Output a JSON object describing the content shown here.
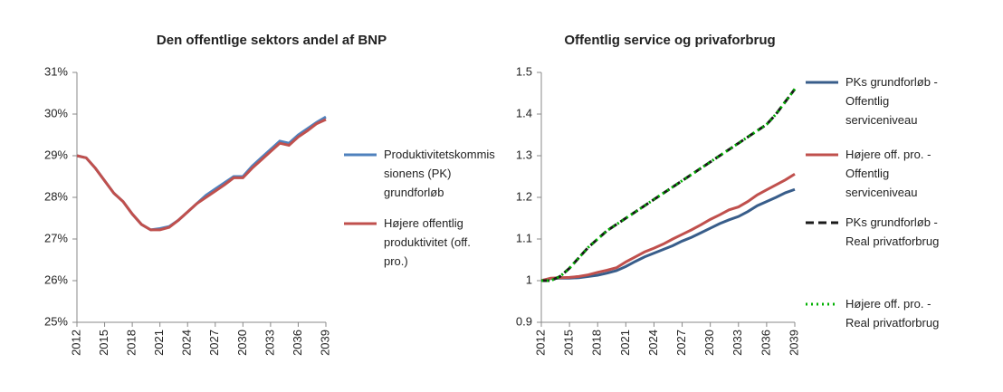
{
  "chart_data": [
    {
      "type": "line",
      "title": "Den offentlige sektors andel af BNP",
      "x": [
        2012,
        2013,
        2014,
        2015,
        2016,
        2017,
        2018,
        2019,
        2020,
        2021,
        2022,
        2023,
        2024,
        2025,
        2026,
        2027,
        2028,
        2029,
        2030,
        2031,
        2032,
        2033,
        2034,
        2035,
        2036,
        2037,
        2038,
        2039
      ],
      "xlim": [
        2012,
        2039
      ],
      "xticks": [
        2012,
        2015,
        2018,
        2021,
        2024,
        2027,
        2030,
        2033,
        2036,
        2039
      ],
      "ylim": [
        25,
        31
      ],
      "yticks": [
        {
          "value": 25,
          "label": "25%"
        },
        {
          "value": 26,
          "label": "26%"
        },
        {
          "value": 27,
          "label": "27%"
        },
        {
          "value": 28,
          "label": "28%"
        },
        {
          "value": 29,
          "label": "29%"
        },
        {
          "value": 30,
          "label": "30%"
        },
        {
          "value": 31,
          "label": "31%"
        }
      ],
      "series": [
        {
          "name": "Produktivitetskommissionens (PK) grundforløb",
          "color": "#4f81bd",
          "dash": "solid",
          "values": [
            29.0,
            28.95,
            28.7,
            28.4,
            28.1,
            27.9,
            27.6,
            27.35,
            27.22,
            27.25,
            27.3,
            27.45,
            27.65,
            27.85,
            28.05,
            28.2,
            28.35,
            28.5,
            28.5,
            28.75,
            28.95,
            29.15,
            29.35,
            29.3,
            29.5,
            29.65,
            29.8,
            29.93
          ]
        },
        {
          "name": "Højere offentlig produktivitet (off. pro.)",
          "color": "#c0504d",
          "dash": "solid",
          "values": [
            29.0,
            28.95,
            28.7,
            28.4,
            28.1,
            27.9,
            27.6,
            27.35,
            27.22,
            27.22,
            27.28,
            27.45,
            27.65,
            27.85,
            28.0,
            28.15,
            28.3,
            28.47,
            28.47,
            28.7,
            28.9,
            29.1,
            29.3,
            29.25,
            29.45,
            29.6,
            29.77,
            29.87
          ]
        }
      ]
    },
    {
      "type": "line",
      "title": "Offentlig service og privaforbrug",
      "x": [
        2012,
        2013,
        2014,
        2015,
        2016,
        2017,
        2018,
        2019,
        2020,
        2021,
        2022,
        2023,
        2024,
        2025,
        2026,
        2027,
        2028,
        2029,
        2030,
        2031,
        2032,
        2033,
        2034,
        2035,
        2036,
        2037,
        2038,
        2039
      ],
      "xlim": [
        2012,
        2039
      ],
      "xticks": [
        2012,
        2015,
        2018,
        2021,
        2024,
        2027,
        2030,
        2033,
        2036,
        2039
      ],
      "ylim": [
        0.9,
        1.5
      ],
      "yticks": [
        0.9,
        1,
        1.1,
        1.2,
        1.3,
        1.4,
        1.5
      ],
      "series": [
        {
          "name": "PKs grundforløb - Offentlig serviceniveau",
          "color": "#385d8a",
          "dash": "solid",
          "values": [
            1.0,
            1.005,
            1.006,
            1.006,
            1.007,
            1.01,
            1.013,
            1.018,
            1.024,
            1.034,
            1.046,
            1.057,
            1.066,
            1.075,
            1.084,
            1.095,
            1.104,
            1.115,
            1.126,
            1.137,
            1.146,
            1.154,
            1.166,
            1.18,
            1.19,
            1.2,
            1.211,
            1.219
          ]
        },
        {
          "name": "Højere off. pro. - Offentlig serviceniveau",
          "color": "#c0504d",
          "dash": "solid",
          "values": [
            1.0,
            1.006,
            1.007,
            1.008,
            1.01,
            1.014,
            1.02,
            1.025,
            1.031,
            1.045,
            1.057,
            1.069,
            1.078,
            1.088,
            1.1,
            1.111,
            1.122,
            1.134,
            1.147,
            1.158,
            1.17,
            1.177,
            1.19,
            1.206,
            1.218,
            1.23,
            1.242,
            1.256
          ]
        },
        {
          "name": "PKs grundforløb - Real privatforbrug",
          "color": "#1a1a1a",
          "dash": "dashed",
          "values": [
            1.0,
            1.0,
            1.01,
            1.03,
            1.055,
            1.08,
            1.1,
            1.12,
            1.135,
            1.15,
            1.165,
            1.18,
            1.195,
            1.21,
            1.225,
            1.24,
            1.255,
            1.27,
            1.285,
            1.3,
            1.315,
            1.33,
            1.345,
            1.36,
            1.375,
            1.4,
            1.43,
            1.46
          ]
        },
        {
          "name": "Højere off. pro. - Real privatforbrug",
          "color": "#00b000",
          "dash": "dotted",
          "values": [
            1.0,
            1.0,
            1.01,
            1.03,
            1.055,
            1.08,
            1.1,
            1.12,
            1.135,
            1.15,
            1.165,
            1.18,
            1.195,
            1.21,
            1.225,
            1.24,
            1.255,
            1.27,
            1.285,
            1.3,
            1.315,
            1.33,
            1.345,
            1.36,
            1.375,
            1.4,
            1.43,
            1.46
          ]
        }
      ]
    }
  ]
}
